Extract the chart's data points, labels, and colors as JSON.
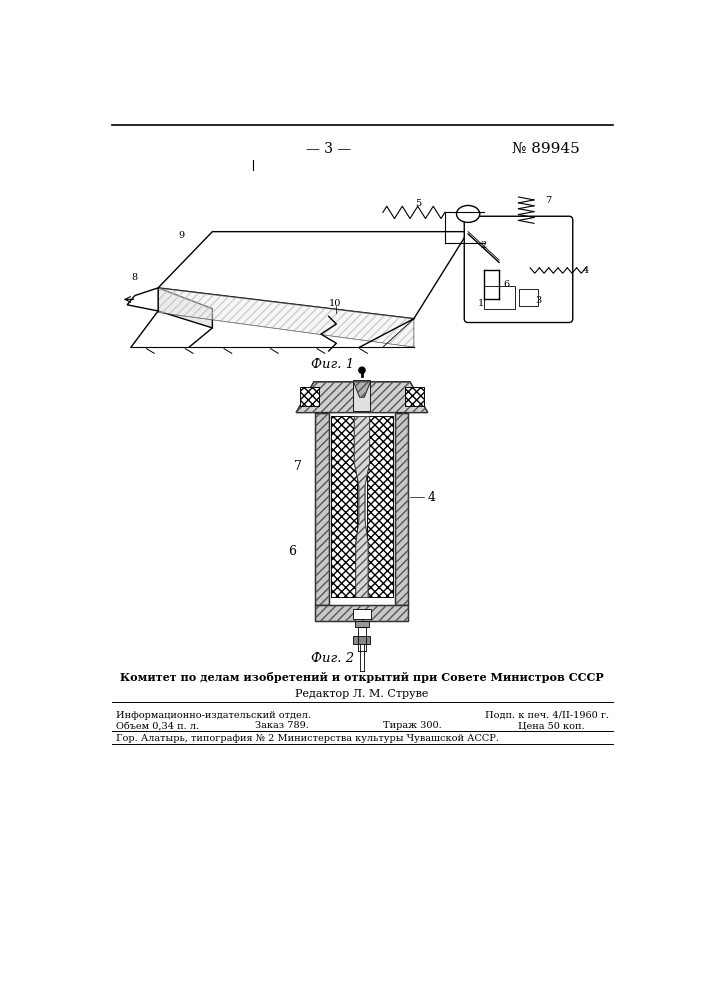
{
  "page_number": "— 3 —",
  "patent_number": "№ 89945",
  "fig1_caption": "Фиг. 1",
  "fig2_caption": "Фиг. 2",
  "header_line": "Комитет по делам изобретений и открытий при Совете Министров СССР",
  "editor_line": "Редактор Л. М. Струве",
  "info_line1_left": "Информационно-издательский отдел.",
  "info_line1_right": "Подп. к печ. 4/II-1960 г.",
  "info_line2_col1": "Объем 0,34 п. л.",
  "info_line2_col2": "Заказ 789.",
  "info_line2_col3": "Тираж 300.",
  "info_line2_col4": "Цена 50 коп.",
  "info_line3": "Гор. Алатырь, типография № 2 Министерства культуры Чувашской АССР.",
  "bg_color": "#ffffff",
  "lw": 1.0,
  "lw_thin": 0.6
}
